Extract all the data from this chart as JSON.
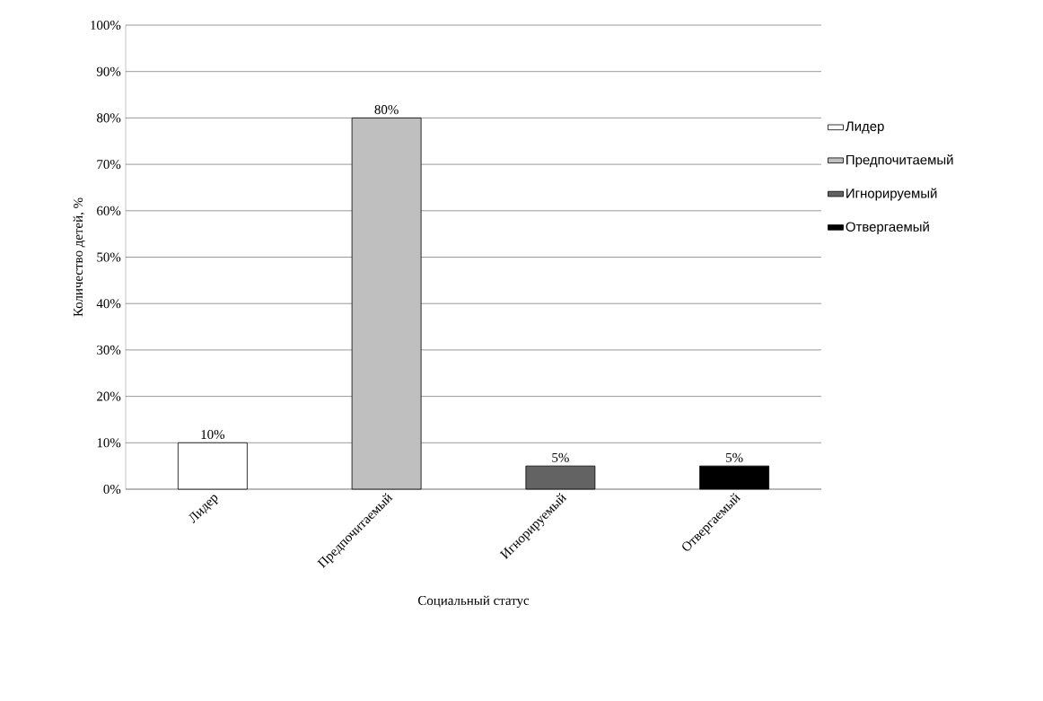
{
  "chart_data": {
    "type": "bar",
    "xlabel": "Социальный статус",
    "ylabel": "Количество детей, %",
    "categories": [
      "Лидер",
      "Предпочитаемый",
      "Игнорируемый",
      "Отвергаемый"
    ],
    "series": [
      {
        "name": "Лидер",
        "color": "#ffffff",
        "values": [
          10,
          null,
          null,
          null
        ],
        "value_labels": [
          "10%",
          null,
          null,
          null
        ]
      },
      {
        "name": "Предпочитаемый",
        "color": "#bfbfbf",
        "values": [
          null,
          80,
          null,
          null
        ],
        "value_labels": [
          null,
          "80%",
          null,
          null
        ]
      },
      {
        "name": "Игнорируемый",
        "color": "#636363",
        "values": [
          null,
          null,
          5,
          null
        ],
        "value_labels": [
          null,
          null,
          "5%",
          null
        ]
      },
      {
        "name": "Отвергаемый",
        "color": "#000000",
        "values": [
          null,
          null,
          null,
          5
        ],
        "value_labels": [
          null,
          null,
          null,
          "5%"
        ]
      }
    ],
    "ylim": [
      0,
      100
    ],
    "yticks": [
      {
        "value": 0,
        "label": "0%"
      },
      {
        "value": 10,
        "label": "10%"
      },
      {
        "value": 20,
        "label": "20%"
      },
      {
        "value": 30,
        "label": "30%"
      },
      {
        "value": 40,
        "label": "40%"
      },
      {
        "value": 50,
        "label": "50%"
      },
      {
        "value": 60,
        "label": "60%"
      },
      {
        "value": 70,
        "label": "70%"
      },
      {
        "value": 80,
        "label": "80%"
      },
      {
        "value": 90,
        "label": "90%"
      },
      {
        "value": 100,
        "label": "100%"
      }
    ],
    "grid": "y",
    "legend": "right"
  }
}
